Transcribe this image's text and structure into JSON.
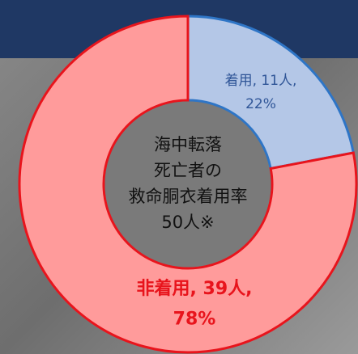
{
  "chart_data": {
    "type": "donut",
    "center_text": [
      "海中転落",
      "死亡者の",
      "救命胴衣着用率",
      "50人※"
    ],
    "labels": [
      "着用, 11人,",
      "非着用, 39人,"
    ],
    "values": [
      22,
      78
    ],
    "value_labels": [
      "22%",
      "78%"
    ],
    "colors": [
      "#b4c7e7",
      "#ff9b9b"
    ],
    "edge_colors": [
      "#2e75c6",
      "#e8141c"
    ],
    "label_colors": [
      "#2f5597",
      "#e8141c"
    ]
  }
}
